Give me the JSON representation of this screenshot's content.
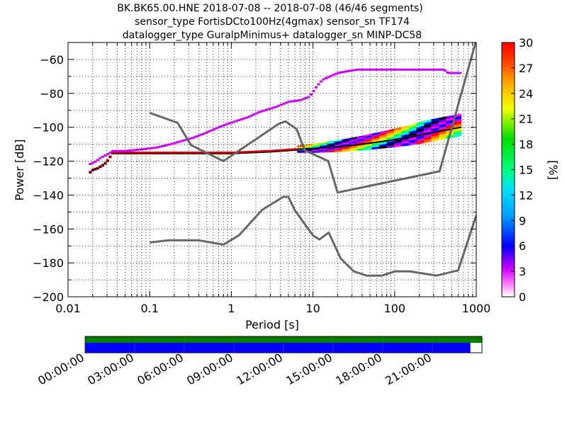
{
  "title": {
    "line1": "BK.BK65.00.HNE   2018-07-08 -- 2018-07-08  (46/46 segments)",
    "line2": "sensor_type FortisDCto100Hz(4gmax) sensor_sn TF174",
    "line3": "datalogger_type GuralpMinimus+ datalogger_sn MINP-DC58"
  },
  "chart_data": {
    "type": "heatmap",
    "xlabel": "Period [s]",
    "ylabel": "Power [dB]",
    "x_scale": "log",
    "xlim": [
      0.01,
      1000
    ],
    "ylim": [
      -200,
      -50
    ],
    "x_ticks": [
      {
        "v": 0.01,
        "label": "0.01"
      },
      {
        "v": 0.1,
        "label": "0.1"
      },
      {
        "v": 1,
        "label": "1"
      },
      {
        "v": 10,
        "label": "10"
      },
      {
        "v": 100,
        "label": "100"
      },
      {
        "v": 1000,
        "label": "1000"
      }
    ],
    "y_ticks": [
      {
        "v": -60,
        "label": "−60"
      },
      {
        "v": -80,
        "label": "−80"
      },
      {
        "v": -100,
        "label": "−100"
      },
      {
        "v": -120,
        "label": "−120"
      },
      {
        "v": -140,
        "label": "−140"
      },
      {
        "v": -160,
        "label": "−160"
      },
      {
        "v": -180,
        "label": "−180"
      },
      {
        "v": -200,
        "label": "−200"
      }
    ],
    "grid": true,
    "colorbar": {
      "label": "[%]",
      "range": [
        0,
        30
      ],
      "ticks": [
        {
          "v": 0,
          "label": "0"
        },
        {
          "v": 3,
          "label": "3"
        },
        {
          "v": 6,
          "label": "6"
        },
        {
          "v": 9,
          "label": "9"
        },
        {
          "v": 12,
          "label": "12"
        },
        {
          "v": 15,
          "label": "15"
        },
        {
          "v": 18,
          "label": "18"
        },
        {
          "v": 21,
          "label": "21"
        },
        {
          "v": 24,
          "label": "24"
        },
        {
          "v": 27,
          "label": "27"
        },
        {
          "v": 30,
          "label": "30"
        }
      ]
    },
    "noise_model_high": [
      [
        0.1,
        -91.5
      ],
      [
        0.22,
        -97.4
      ],
      [
        0.32,
        -110.5
      ],
      [
        0.8,
        -120
      ],
      [
        3.8,
        -98
      ],
      [
        4.6,
        -96.5
      ],
      [
        6.3,
        -101
      ],
      [
        7.9,
        -113.5
      ],
      [
        15.4,
        -120
      ],
      [
        20,
        -138.5
      ],
      [
        354.8,
        -126
      ],
      [
        10000,
        -48.5
      ]
    ],
    "noise_model_low": [
      [
        0.1,
        -168
      ],
      [
        0.17,
        -166.7
      ],
      [
        0.4,
        -166.7
      ],
      [
        0.8,
        -169.2
      ],
      [
        1.24,
        -163.7
      ],
      [
        2.4,
        -148.6
      ],
      [
        4.3,
        -141.1
      ],
      [
        5,
        -141.1
      ],
      [
        6,
        -149
      ],
      [
        10,
        -163.8
      ],
      [
        12,
        -166.2
      ],
      [
        15.6,
        -162.1
      ],
      [
        21.9,
        -177.5
      ],
      [
        31.6,
        -185
      ],
      [
        45,
        -187.5
      ],
      [
        70,
        -187.5
      ],
      [
        101,
        -185
      ],
      [
        154,
        -185
      ],
      [
        328,
        -187.5
      ],
      [
        600,
        -184.4
      ],
      [
        10000,
        -151.9
      ]
    ],
    "psd_high_row": [
      [
        0.018,
        -122
      ],
      [
        0.02,
        -121
      ],
      [
        0.022,
        -120
      ],
      [
        0.025,
        -118
      ],
      [
        0.03,
        -116
      ],
      [
        0.035,
        -114
      ],
      [
        0.05,
        -114
      ],
      [
        0.08,
        -113
      ],
      [
        0.12,
        -112
      ],
      [
        0.18,
        -110
      ],
      [
        0.25,
        -108
      ],
      [
        0.35,
        -106
      ],
      [
        0.5,
        -103
      ],
      [
        0.7,
        -100
      ],
      [
        0.9,
        -98
      ],
      [
        1.2,
        -96
      ],
      [
        1.6,
        -94
      ],
      [
        2.2,
        -91
      ],
      [
        3.5,
        -88
      ],
      [
        5,
        -85
      ],
      [
        7,
        -84
      ],
      [
        9,
        -82
      ],
      [
        10,
        -79
      ],
      [
        11,
        -76
      ],
      [
        13,
        -72
      ],
      [
        16,
        -70
      ],
      [
        20,
        -68
      ],
      [
        26,
        -67
      ],
      [
        35,
        -66
      ],
      [
        100,
        -66
      ],
      [
        400,
        -66
      ],
      [
        450,
        -68
      ],
      [
        650,
        -68
      ]
    ],
    "psd_main_band": [
      [
        0.018,
        -127
      ],
      [
        0.02,
        -125
      ],
      [
        0.023,
        -124
      ],
      [
        0.027,
        -122
      ],
      [
        0.03,
        -120
      ],
      [
        0.035,
        -115
      ],
      [
        0.1,
        -115
      ],
      [
        1,
        -115
      ],
      [
        3,
        -114
      ],
      [
        6,
        -113
      ],
      [
        10,
        -112.5
      ],
      [
        20,
        -111.5
      ],
      [
        40,
        -110
      ],
      [
        80,
        -108
      ],
      [
        150,
        -106
      ],
      [
        300,
        -103
      ],
      [
        650,
        -100
      ]
    ]
  },
  "time_axis": {
    "labels": [
      "00:00:00",
      "03:00:00",
      "06:00:00",
      "09:00:00",
      "12:00:00",
      "15:00:00",
      "18:00:00",
      "21:00:00"
    ],
    "coverage_hours": [
      0,
      23.3
    ],
    "total_hours": 24,
    "top_bar_color": "#007f00",
    "coverage_color": "#0000ff"
  }
}
